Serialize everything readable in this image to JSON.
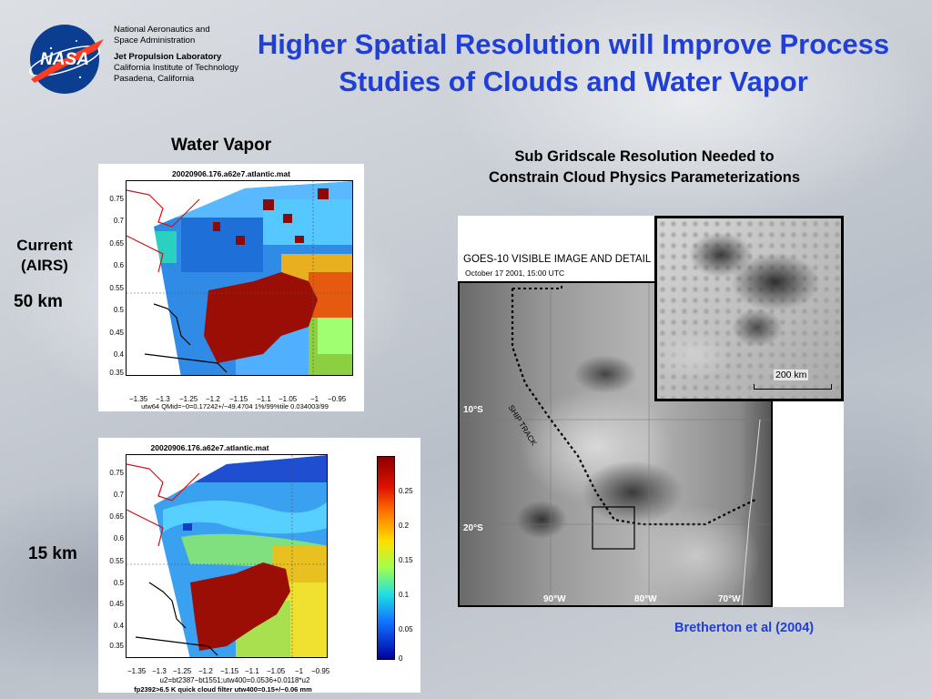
{
  "header": {
    "org_line1": "National Aeronautics and",
    "org_line2": "Space Administration",
    "lab_name": "Jet Propulsion Laboratory",
    "lab_line2": "California Institute of Technology",
    "lab_line3": "Pasadena, California",
    "logo_text": "NASA",
    "title_line1": "Higher Spatial Resolution will Improve Process",
    "title_line2": "Studies of Clouds and Water Vapor"
  },
  "left_labels": {
    "water_vapor": "Water Vapor",
    "current": "Current",
    "airs": "(AIRS)",
    "km50": "50 km",
    "km15": "15 km"
  },
  "plot_top": {
    "title": "20020906.176.a62e7.atlantic.mat",
    "yticks": [
      "0.75",
      "0.7",
      "0.65",
      "0.6",
      "0.55",
      "0.5",
      "0.45",
      "0.4",
      "0.35"
    ],
    "xticks": [
      "−1.35",
      "−1.3",
      "−1.25",
      "−1.2",
      "−1.15",
      "−1.1",
      "−1.05",
      "−1",
      "−0.95"
    ],
    "caption": "utw64 QMid=−0=0.17242+/−49.4704 1%/99%tile 0.034003/99"
  },
  "plot_bottom": {
    "title": "20020906.176.a62e7.atlantic.mat",
    "yticks": [
      "0.75",
      "0.7",
      "0.65",
      "0.6",
      "0.55",
      "0.5",
      "0.45",
      "0.4",
      "0.35"
    ],
    "xticks": [
      "−1.35",
      "−1.3",
      "−1.25",
      "−1.2",
      "−1.15",
      "−1.1",
      "−1.05",
      "−1",
      "−0.95"
    ],
    "caption1": "u2=bt2387−bt1551;utw400=0.0536+0.0118*u2",
    "caption2": "fp2392>6.5 K quick cloud filter utw400=0.15+/−0.06  mm",
    "colorbar_ticks": [
      "0.25",
      "0.2",
      "0.15",
      "0.1",
      "0.05",
      "0"
    ]
  },
  "right_panel": {
    "heading_line1": "Sub Gridscale Resolution Needed to",
    "heading_line2": "Constrain Cloud Physics Parameterizations",
    "goes_title": "GOES-10 VISIBLE IMAGE AND DETAIL",
    "goes_date": "October 17 2001, 15:00 UTC",
    "scale_label": "200 km",
    "ship_track": "SHIP TRACK",
    "lat_10": "10°S",
    "lat_20": "20°S",
    "lon_90": "90°W",
    "lon_80": "80°W",
    "lon_70": "70°W",
    "citation": "Bretherton et al (2004)"
  }
}
